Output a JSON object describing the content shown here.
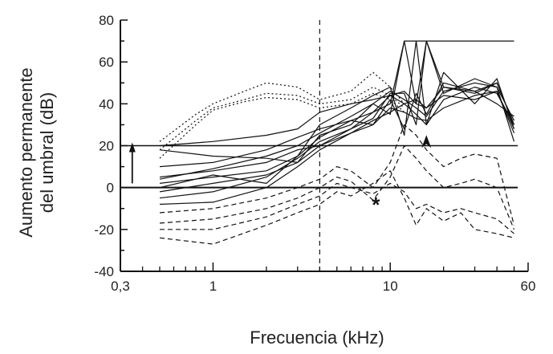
{
  "chart_data": {
    "type": "line",
    "xlabel": "Frecuencia (kHz)",
    "ylabel_line1": "Aumento permanente",
    "ylabel_line2": "del umbral (dB)",
    "x_scale": "log",
    "xlim": [
      0.3,
      60
    ],
    "ylim": [
      -40,
      80
    ],
    "x_ticks": [
      {
        "value": 0.3,
        "label": "0,3"
      },
      {
        "value": 1,
        "label": "1"
      },
      {
        "value": 10,
        "label": "10"
      },
      {
        "value": 60,
        "label": "60"
      }
    ],
    "y_ticks": [
      {
        "value": -40,
        "label": "-40"
      },
      {
        "value": -20,
        "label": "-20"
      },
      {
        "value": 0,
        "label": "0"
      },
      {
        "value": 20,
        "label": "20"
      },
      {
        "value": 40,
        "label": "40"
      },
      {
        "value": 60,
        "label": "60"
      },
      {
        "value": 80,
        "label": "80"
      }
    ],
    "reference_lines": [
      {
        "axis": "y",
        "value": 0,
        "style": "solid"
      },
      {
        "axis": "y",
        "value": 20,
        "style": "solid"
      },
      {
        "axis": "x",
        "value": 4,
        "style": "dashed"
      }
    ],
    "annotations": [
      {
        "kind": "arrow-up",
        "x": 0.35,
        "y": 12
      },
      {
        "kind": "arrowhead",
        "x": 16,
        "y": 22
      },
      {
        "kind": "text",
        "text": "*",
        "x": 8.3,
        "y": -7
      }
    ],
    "series_solid": [
      {
        "x": [
          0.5,
          1,
          2,
          3,
          4,
          6,
          8,
          10,
          12,
          14,
          16,
          20,
          30,
          40,
          50
        ],
        "y": [
          18,
          15,
          14,
          12,
          25,
          30,
          40,
          35,
          70,
          70,
          70,
          70,
          70,
          70,
          70
        ]
      },
      {
        "x": [
          0.5,
          1,
          2,
          3,
          4,
          6,
          8,
          10,
          12,
          14,
          16,
          20,
          30,
          40,
          50
        ],
        "y": [
          10,
          12,
          18,
          24,
          28,
          32,
          36,
          40,
          70,
          40,
          70,
          45,
          52,
          48,
          22
        ]
      },
      {
        "x": [
          0.5,
          1,
          2,
          3,
          4,
          6,
          8,
          10,
          12,
          14,
          16,
          20,
          30,
          40,
          50
        ],
        "y": [
          5,
          8,
          12,
          18,
          20,
          28,
          33,
          45,
          45,
          30,
          70,
          48,
          45,
          50,
          30
        ]
      },
      {
        "x": [
          0.5,
          1,
          2,
          3,
          4,
          6,
          8,
          10,
          12,
          14,
          16,
          20,
          30,
          40,
          50
        ],
        "y": [
          2,
          5,
          8,
          15,
          30,
          38,
          44,
          48,
          25,
          70,
          30,
          55,
          40,
          52,
          28
        ]
      },
      {
        "x": [
          0.5,
          1,
          2,
          3,
          4,
          6,
          8,
          10,
          12,
          14,
          16,
          20,
          30,
          40,
          50
        ],
        "y": [
          -5,
          -2,
          5,
          14,
          22,
          28,
          36,
          44,
          40,
          35,
          30,
          42,
          48,
          45,
          30
        ]
      },
      {
        "x": [
          0.5,
          1,
          2,
          3,
          4,
          6,
          8,
          10,
          12,
          14,
          16,
          20,
          30,
          40,
          50
        ],
        "y": [
          -8,
          -7,
          0,
          10,
          18,
          26,
          30,
          38,
          36,
          33,
          32,
          38,
          44,
          46,
          26
        ]
      },
      {
        "x": [
          0.5,
          1,
          2,
          3,
          4,
          6,
          8,
          10,
          12,
          14,
          16,
          20,
          30,
          40,
          50
        ],
        "y": [
          0,
          6,
          2,
          15,
          24,
          32,
          30,
          42,
          28,
          45,
          35,
          50,
          46,
          40,
          34
        ]
      },
      {
        "x": [
          0.5,
          1,
          2,
          3,
          4,
          6,
          8,
          10,
          12,
          14,
          16,
          20,
          30,
          40,
          50
        ],
        "y": [
          4,
          9,
          15,
          20,
          26,
          34,
          40,
          46,
          42,
          38,
          34,
          46,
          50,
          48,
          32
        ]
      },
      {
        "x": [
          0.5,
          1,
          2,
          3,
          4,
          6,
          8,
          10,
          12,
          14,
          16,
          20,
          30,
          40,
          50
        ],
        "y": [
          20,
          22,
          25,
          28,
          36,
          40,
          42,
          44,
          46,
          40,
          38,
          44,
          42,
          46,
          28
        ]
      },
      {
        "x": [
          0.5,
          1,
          2,
          3,
          4,
          6,
          8,
          10,
          12,
          14,
          16,
          20,
          30,
          40,
          50
        ],
        "y": [
          -2,
          2,
          6,
          12,
          20,
          26,
          32,
          36,
          40,
          42,
          38,
          48,
          46,
          50,
          30
        ]
      }
    ],
    "series_dotted": [
      {
        "x": [
          0.5,
          0.8,
          1,
          1.5,
          2,
          3,
          4,
          6,
          8,
          10,
          12
        ],
        "y": [
          22,
          35,
          40,
          46,
          50,
          48,
          42,
          46,
          55,
          48,
          40
        ]
      },
      {
        "x": [
          0.5,
          0.8,
          1,
          1.5,
          2,
          3,
          4,
          6,
          8,
          10,
          12
        ],
        "y": [
          18,
          32,
          38,
          42,
          45,
          44,
          40,
          42,
          48,
          44,
          38
        ]
      },
      {
        "x": [
          0.5,
          0.8,
          1,
          1.5,
          2,
          3,
          4,
          6,
          8,
          10,
          12
        ],
        "y": [
          14,
          30,
          37,
          41,
          43,
          42,
          38,
          40,
          45,
          42,
          36
        ]
      }
    ],
    "series_dashed": [
      {
        "x": [
          0.5,
          1,
          2,
          3,
          4,
          5,
          6,
          8,
          10,
          12,
          14,
          16,
          20,
          25,
          30,
          40,
          50
        ],
        "y": [
          -12,
          -10,
          -5,
          0,
          4,
          10,
          8,
          0,
          12,
          30,
          25,
          18,
          10,
          14,
          16,
          14,
          -18
        ]
      },
      {
        "x": [
          0.5,
          1,
          2,
          3,
          4,
          5,
          6,
          8,
          10,
          12,
          14,
          16,
          20,
          25,
          30,
          40,
          50
        ],
        "y": [
          -17,
          -15,
          -10,
          -5,
          0,
          5,
          3,
          -6,
          5,
          20,
          14,
          8,
          0,
          2,
          4,
          0,
          -20
        ]
      },
      {
        "x": [
          0.5,
          1,
          2,
          3,
          4,
          5,
          6,
          8,
          10,
          12,
          14,
          16,
          20,
          25,
          30,
          40,
          50
        ],
        "y": [
          -20,
          -20,
          -14,
          -8,
          -4,
          2,
          0,
          -3,
          2,
          -2,
          -10,
          -8,
          -12,
          -10,
          -12,
          -15,
          -22
        ]
      },
      {
        "x": [
          0.5,
          1,
          2,
          3,
          4,
          5,
          6,
          8,
          10,
          12,
          14,
          16,
          20,
          25,
          30,
          40,
          50
        ],
        "y": [
          -24,
          -27,
          -18,
          -12,
          -8,
          -2,
          -4,
          2,
          8,
          -5,
          -18,
          -10,
          -16,
          -12,
          -20,
          -22,
          -24
        ]
      }
    ]
  }
}
